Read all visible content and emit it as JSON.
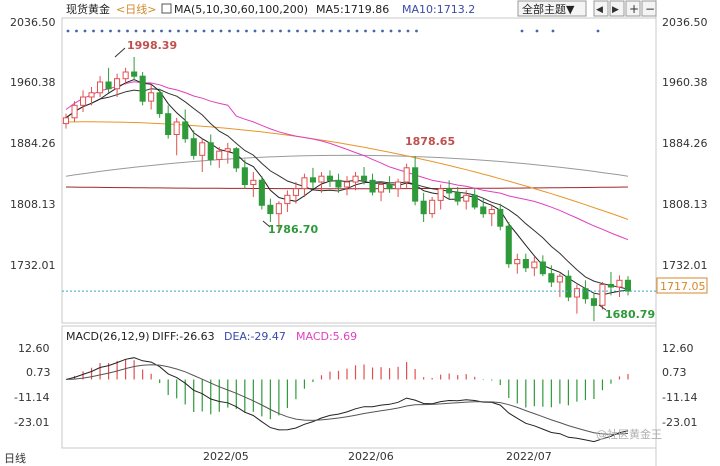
{
  "header": {
    "instrument": "现货黄金",
    "period": "<日线>",
    "ma_label": "MA(5,10,30,60,100,200)",
    "ma5_label": "MA5:1719.86",
    "ma10_label": "MA10:1713.2",
    "theme_button": "全部主题▼",
    "nav_prev": "◀",
    "nav_next": "▶",
    "zoom_in": "+",
    "zoom_out": "−"
  },
  "price_axis": {
    "left_ticks": [
      "2036.50",
      "1960.38",
      "1884.26",
      "1808.13",
      "1732.01"
    ],
    "right_ticks": [
      "2036.50",
      "1960.38",
      "1884.26",
      "1808.13",
      "1732.01"
    ],
    "current_price": "1717.05"
  },
  "annotations": {
    "high_1": "1998.39",
    "low_1": "1786.70",
    "high_2": "1878.65",
    "low_2": "1680.79"
  },
  "macd": {
    "label": "MACD(26,12,9)",
    "diff": "DIFF:-26.63",
    "dea": "DEA:-29.47",
    "macd": "MACD:5.69",
    "left_ticks": [
      "12.60",
      "0.73",
      "-11.14",
      "-23.01"
    ],
    "right_ticks": [
      "12.60",
      "0.73",
      "-11.14",
      "-23.01"
    ]
  },
  "time_axis": {
    "corner": "日线",
    "labels": [
      "2022/05",
      "2022/06",
      "2022/07"
    ]
  },
  "watermark": "@社区黄金王",
  "colors": {
    "up": "#e05050",
    "down": "#2e9a3a",
    "ma5": "#222222",
    "ma10": "#333333",
    "ma30": "#e040c0",
    "ma60": "#e8962a",
    "ma100": "#999999",
    "ma200": "#a02828",
    "current_line": "#3aa7c8"
  },
  "chart_data": {
    "type": "candlestick",
    "price_range": [
      1680,
      2040
    ],
    "macd_range": [
      -30,
      16
    ],
    "candles": [
      [
        1918,
        1930,
        1912,
        1925
      ],
      [
        1925,
        1945,
        1920,
        1940
      ],
      [
        1940,
        1958,
        1932,
        1950
      ],
      [
        1950,
        1962,
        1940,
        1955
      ],
      [
        1955,
        1975,
        1950,
        1968
      ],
      [
        1968,
        1985,
        1955,
        1960
      ],
      [
        1960,
        1978,
        1950,
        1972
      ],
      [
        1972,
        1985,
        1965,
        1980
      ],
      [
        1980,
        1998,
        1970,
        1975
      ],
      [
        1975,
        1980,
        1940,
        1945
      ],
      [
        1945,
        1965,
        1935,
        1955
      ],
      [
        1955,
        1960,
        1925,
        1930
      ],
      [
        1930,
        1940,
        1900,
        1905
      ],
      [
        1905,
        1925,
        1880,
        1920
      ],
      [
        1920,
        1935,
        1895,
        1900
      ],
      [
        1900,
        1910,
        1875,
        1880
      ],
      [
        1880,
        1900,
        1860,
        1895
      ],
      [
        1895,
        1905,
        1868,
        1875
      ],
      [
        1875,
        1890,
        1865,
        1885
      ],
      [
        1885,
        1895,
        1870,
        1888
      ],
      [
        1888,
        1890,
        1860,
        1865
      ],
      [
        1865,
        1875,
        1840,
        1845
      ],
      [
        1845,
        1860,
        1830,
        1850
      ],
      [
        1850,
        1855,
        1815,
        1820
      ],
      [
        1820,
        1828,
        1800,
        1810
      ],
      [
        1810,
        1825,
        1787,
        1822
      ],
      [
        1822,
        1838,
        1812,
        1832
      ],
      [
        1832,
        1848,
        1822,
        1840
      ],
      [
        1840,
        1858,
        1830,
        1853
      ],
      [
        1853,
        1865,
        1840,
        1848
      ],
      [
        1848,
        1860,
        1835,
        1855
      ],
      [
        1855,
        1862,
        1842,
        1850
      ],
      [
        1850,
        1858,
        1835,
        1842
      ],
      [
        1842,
        1855,
        1832,
        1848
      ],
      [
        1848,
        1860,
        1838,
        1855
      ],
      [
        1855,
        1866,
        1845,
        1850
      ],
      [
        1850,
        1858,
        1832,
        1836
      ],
      [
        1836,
        1848,
        1825,
        1845
      ],
      [
        1845,
        1855,
        1835,
        1840
      ],
      [
        1840,
        1852,
        1830,
        1848
      ],
      [
        1848,
        1870,
        1840,
        1865
      ],
      [
        1865,
        1879,
        1820,
        1825
      ],
      [
        1825,
        1835,
        1800,
        1810
      ],
      [
        1810,
        1830,
        1805,
        1826
      ],
      [
        1826,
        1845,
        1815,
        1840
      ],
      [
        1840,
        1850,
        1828,
        1835
      ],
      [
        1835,
        1842,
        1820,
        1825
      ],
      [
        1825,
        1838,
        1815,
        1832
      ],
      [
        1832,
        1840,
        1815,
        1818
      ],
      [
        1818,
        1828,
        1805,
        1810
      ],
      [
        1810,
        1820,
        1795,
        1815
      ],
      [
        1815,
        1822,
        1790,
        1795
      ],
      [
        1795,
        1800,
        1745,
        1750
      ],
      [
        1750,
        1762,
        1738,
        1755
      ],
      [
        1755,
        1762,
        1740,
        1745
      ],
      [
        1745,
        1758,
        1735,
        1752
      ],
      [
        1752,
        1760,
        1735,
        1738
      ],
      [
        1738,
        1748,
        1722,
        1728
      ],
      [
        1728,
        1738,
        1710,
        1735
      ],
      [
        1735,
        1742,
        1705,
        1710
      ],
      [
        1710,
        1725,
        1690,
        1720
      ],
      [
        1720,
        1730,
        1702,
        1708
      ],
      [
        1708,
        1715,
        1681,
        1700
      ],
      [
        1700,
        1728,
        1695,
        1725
      ],
      [
        1725,
        1740,
        1712,
        1722
      ],
      [
        1722,
        1736,
        1710,
        1730
      ],
      [
        1730,
        1735,
        1712,
        1717
      ]
    ],
    "annotated_points": [
      {
        "label": "1998.39",
        "value": 1998.39
      },
      {
        "label": "1786.70",
        "value": 1786.7
      },
      {
        "label": "1878.65",
        "value": 1878.65
      },
      {
        "label": "1680.79",
        "value": 1680.79
      }
    ]
  }
}
